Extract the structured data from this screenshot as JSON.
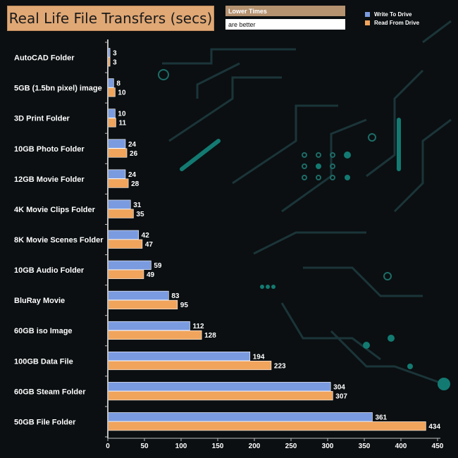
{
  "title": "Real Life File Transfers (secs)",
  "note": {
    "line1": "Lower Times",
    "line2": "are better"
  },
  "legend": [
    {
      "label": "Write To  Drive",
      "color": "#7b9be0"
    },
    {
      "label": "Read From  Drive",
      "color": "#f0a45c"
    }
  ],
  "chart_data": {
    "type": "bar",
    "orientation": "horizontal",
    "title": "Real Life File Transfers (secs)",
    "categories": [
      "AutoCAD Folder",
      "5GB (1.5bn pixel) image",
      "3D Print Folder",
      "10GB Photo Folder",
      "12GB Movie Folder",
      "4K Movie Clips Folder",
      "8K Movie Scenes Folder",
      "10GB Audio Folder",
      "BluRay Movie",
      "60GB iso Image",
      "100GB Data File",
      "60GB Steam Folder",
      "50GB File Folder"
    ],
    "series": [
      {
        "name": "Write To  Drive",
        "color": "#7b9be0",
        "values": [
          3,
          8,
          10,
          24,
          24,
          31,
          42,
          59,
          83,
          112,
          194,
          304,
          361
        ]
      },
      {
        "name": "Read From  Drive",
        "color": "#f0a45c",
        "values": [
          3,
          10,
          11,
          26,
          28,
          35,
          47,
          49,
          95,
          128,
          223,
          307,
          434
        ]
      }
    ],
    "xlim": [
      0,
      450
    ],
    "xticks": [
      0,
      50,
      100,
      150,
      200,
      250,
      300,
      350,
      400,
      450
    ],
    "grid": false,
    "legend_position": "top-right"
  }
}
